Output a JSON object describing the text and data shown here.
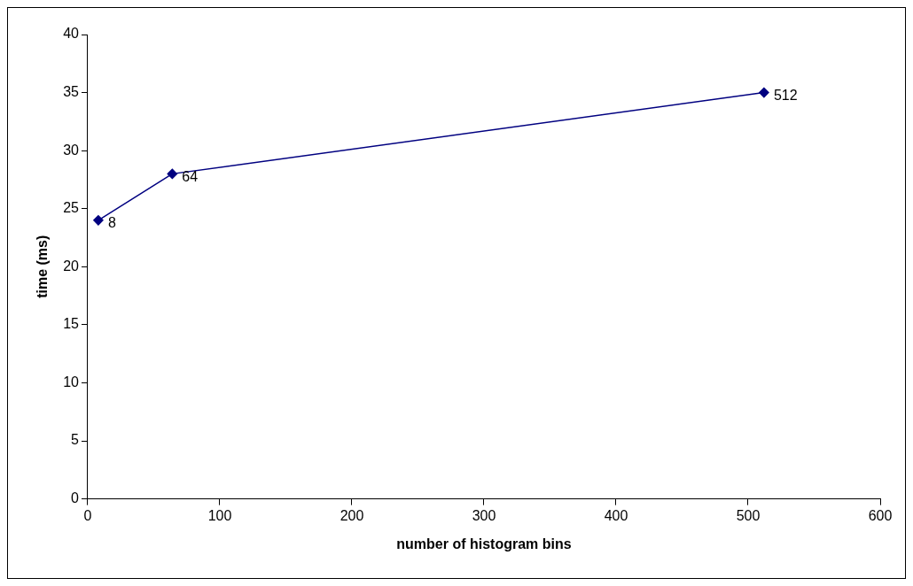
{
  "chart_data": {
    "type": "line",
    "xlabel": "number of histogram bins",
    "ylabel": "time (ms)",
    "x": [
      8,
      64,
      512
    ],
    "series": [
      {
        "color": "#000080",
        "values": [
          24,
          28,
          35
        ]
      }
    ],
    "xlim": [
      0,
      600
    ],
    "xticks": [
      0,
      100,
      200,
      300,
      400,
      500,
      600
    ],
    "ylim": [
      0,
      40
    ],
    "yticks": [
      0,
      5,
      10,
      15,
      20,
      25,
      30,
      35,
      40
    ],
    "marker": "diamond",
    "line_style": "solid",
    "legend": false,
    "annotations": [
      {
        "text": "8",
        "x": 8,
        "y": 24
      },
      {
        "text": "64",
        "x": 64,
        "y": 28
      },
      {
        "text": "512",
        "x": 512,
        "y": 35
      }
    ]
  }
}
